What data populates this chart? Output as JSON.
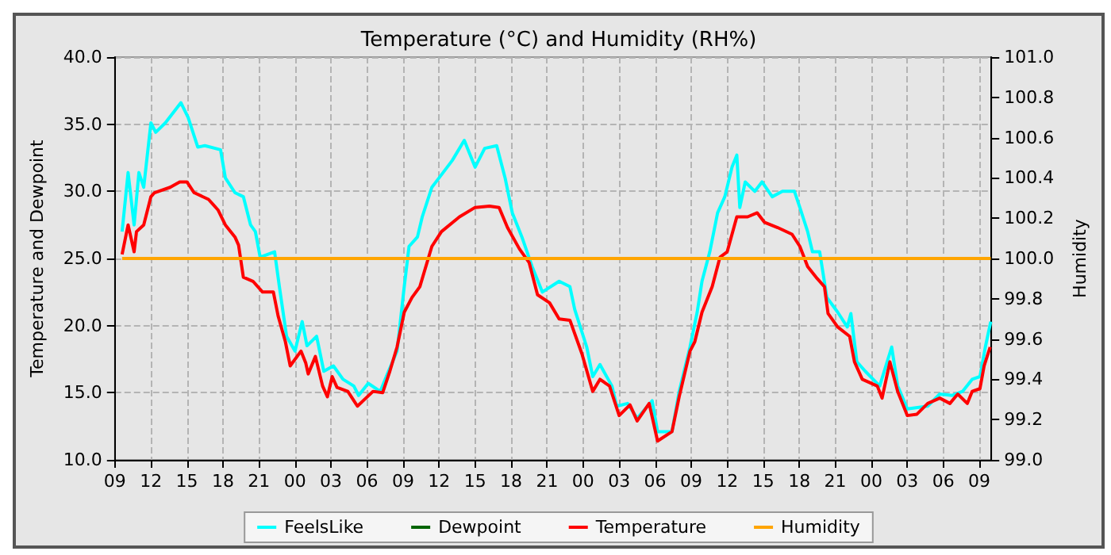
{
  "chart_data": {
    "type": "line",
    "title": "Temperature (°C) and Humidity (RH%)",
    "ylabel": "Temperature and Dewpoint",
    "y2label": "Humidity",
    "xlim": [
      9,
      82
    ],
    "xticks": [
      {
        "value": 9,
        "label": "09"
      },
      {
        "value": 12,
        "label": "12"
      },
      {
        "value": 15,
        "label": "15"
      },
      {
        "value": 18,
        "label": "18"
      },
      {
        "value": 21,
        "label": "21"
      },
      {
        "value": 24,
        "label": "00"
      },
      {
        "value": 27,
        "label": "03"
      },
      {
        "value": 30,
        "label": "06"
      },
      {
        "value": 33,
        "label": "09"
      },
      {
        "value": 36,
        "label": "12"
      },
      {
        "value": 39,
        "label": "15"
      },
      {
        "value": 42,
        "label": "18"
      },
      {
        "value": 45,
        "label": "21"
      },
      {
        "value": 48,
        "label": "00"
      },
      {
        "value": 51,
        "label": "03"
      },
      {
        "value": 54,
        "label": "06"
      },
      {
        "value": 57,
        "label": "09"
      },
      {
        "value": 60,
        "label": "12"
      },
      {
        "value": 63,
        "label": "15"
      },
      {
        "value": 66,
        "label": "18"
      },
      {
        "value": 69,
        "label": "21"
      },
      {
        "value": 72,
        "label": "00"
      },
      {
        "value": 75,
        "label": "03"
      },
      {
        "value": 78,
        "label": "06"
      },
      {
        "value": 81,
        "label": "09"
      }
    ],
    "ylim": [
      10,
      40
    ],
    "yticks": [
      {
        "value": 10,
        "label": "10.0"
      },
      {
        "value": 15,
        "label": "15.0"
      },
      {
        "value": 20,
        "label": "20.0"
      },
      {
        "value": 25,
        "label": "25.0"
      },
      {
        "value": 30,
        "label": "30.0"
      },
      {
        "value": 35,
        "label": "35.0"
      },
      {
        "value": 40,
        "label": "40.0"
      }
    ],
    "y2lim": [
      99,
      101
    ],
    "y2ticks": [
      {
        "value": 99,
        "label": "99.0"
      },
      {
        "value": 99.2,
        "label": "99.2"
      },
      {
        "value": 99.4,
        "label": "99.4"
      },
      {
        "value": 99.6,
        "label": "99.6"
      },
      {
        "value": 99.8,
        "label": "99.8"
      },
      {
        "value": 100,
        "label": "100.0"
      },
      {
        "value": 100.2,
        "label": "100.2"
      },
      {
        "value": 100.4,
        "label": "100.4"
      },
      {
        "value": 100.6,
        "label": "100.6"
      },
      {
        "value": 100.8,
        "label": "100.8"
      },
      {
        "value": 101,
        "label": "101.0"
      }
    ],
    "grid": true,
    "legend": "bottom",
    "marker": "none",
    "line_style": "solid",
    "series": [
      {
        "name": "FeelsLike",
        "color": "#00ffff",
        "x": [
          9.6,
          10.1,
          10.6,
          11.0,
          11.4,
          12.0,
          12.4,
          13.2,
          14.5,
          15.1,
          15.9,
          16.5,
          17.8,
          18.2,
          19.0,
          19.7,
          20.3,
          20.7,
          21.1,
          22.3,
          22.7,
          23.3,
          24.0,
          24.6,
          25.0,
          25.8,
          26.4,
          27.2,
          28.0,
          28.9,
          29.3,
          30.1,
          31.1,
          31.7,
          32.5,
          33.1,
          33.5,
          34.2,
          34.6,
          35.4,
          36.0,
          37.1,
          38.1,
          39.0,
          39.8,
          40.8,
          41.5,
          42.1,
          42.9,
          43.75,
          44.6,
          46.0,
          46.9,
          47.3,
          48.3,
          48.8,
          49.4,
          50.4,
          50.8,
          51.7,
          52.5,
          53.75,
          54.2,
          55.4,
          56.0,
          56.9,
          57.5,
          57.9,
          58.55,
          59.2,
          59.8,
          60.4,
          60.8,
          61.05,
          61.5,
          62.3,
          62.9,
          63.75,
          64.6,
          65.6,
          66.05,
          66.7,
          67.1,
          67.7,
          68.3,
          69.2,
          70.0,
          70.3,
          70.8,
          71.5,
          72.7,
          73.7,
          74.2,
          75.0,
          76.7,
          77.7,
          78.75,
          79.6,
          80.4,
          81.05,
          81.5,
          81.95
        ],
        "values": [
          27.0,
          31.4,
          27.5,
          31.4,
          30.3,
          35.1,
          34.4,
          35.1,
          36.6,
          35.5,
          33.3,
          33.4,
          33.1,
          31.0,
          29.9,
          29.6,
          27.5,
          27.0,
          25.1,
          25.5,
          22.9,
          19.2,
          18.1,
          20.3,
          18.5,
          19.2,
          16.6,
          17.0,
          16.0,
          15.5,
          14.8,
          15.7,
          15.1,
          16.4,
          18.1,
          22.9,
          25.9,
          26.6,
          28.1,
          30.3,
          31.0,
          32.3,
          33.8,
          31.8,
          33.2,
          33.4,
          31.0,
          28.4,
          26.6,
          24.4,
          22.5,
          23.3,
          22.9,
          21.2,
          18.4,
          16.2,
          17.1,
          15.5,
          14.0,
          14.2,
          13.1,
          14.4,
          12.1,
          12.1,
          15.1,
          18.4,
          21.0,
          23.3,
          25.5,
          28.4,
          29.6,
          31.8,
          32.7,
          28.8,
          30.7,
          30.0,
          30.7,
          29.6,
          30.0,
          30.0,
          28.8,
          27.0,
          25.5,
          25.5,
          22.1,
          21.0,
          19.9,
          20.9,
          17.3,
          16.6,
          15.5,
          18.4,
          15.5,
          13.8,
          14.0,
          14.9,
          14.8,
          15.1,
          16.0,
          16.2,
          18.4,
          20.3
        ]
      },
      {
        "name": "Dewpoint",
        "color": "#006400"
      },
      {
        "name": "Temperature",
        "color": "#ff0000",
        "x": [
          9.6,
          10.1,
          10.6,
          10.8,
          11.4,
          12.0,
          12.3,
          13.6,
          14.4,
          15.0,
          15.6,
          16.8,
          17.6,
          18.2,
          19.0,
          19.3,
          19.7,
          20.5,
          21.3,
          22.2,
          22.6,
          23.2,
          23.6,
          24.5,
          24.9,
          25.1,
          25.7,
          26.3,
          26.7,
          27.1,
          27.5,
          28.4,
          29.2,
          30.5,
          31.3,
          31.9,
          32.5,
          33.1,
          33.75,
          34.4,
          35.4,
          36.2,
          37.7,
          39.0,
          40.2,
          41.0,
          41.7,
          42.7,
          43.5,
          44.2,
          45.2,
          46.0,
          46.9,
          47.9,
          48.8,
          49.4,
          50.2,
          51.0,
          51.9,
          52.5,
          53.5,
          54.2,
          55.4,
          56.0,
          56.9,
          57.3,
          57.9,
          58.75,
          59.4,
          60.0,
          60.8,
          61.7,
          62.5,
          63.1,
          64.2,
          65.4,
          66.05,
          66.7,
          67.5,
          68.1,
          68.4,
          69.2,
          70.2,
          70.6,
          71.25,
          72.5,
          72.9,
          73.55,
          74.2,
          75.0,
          75.8,
          76.7,
          77.7,
          78.55,
          79.2,
          80.0,
          80.4,
          81.05,
          81.4,
          81.9
        ],
        "values": [
          25.3,
          27.5,
          25.5,
          27.0,
          27.5,
          29.6,
          29.9,
          30.3,
          30.7,
          30.7,
          29.9,
          29.4,
          28.6,
          27.5,
          26.6,
          26.0,
          23.6,
          23.3,
          22.5,
          22.5,
          20.7,
          18.8,
          17.0,
          18.1,
          17.2,
          16.4,
          17.7,
          15.5,
          14.7,
          16.2,
          15.4,
          15.1,
          14.0,
          15.1,
          15.0,
          16.6,
          18.4,
          21.0,
          22.1,
          22.9,
          25.9,
          27.0,
          28.1,
          28.8,
          28.9,
          28.8,
          27.3,
          25.7,
          24.7,
          22.3,
          21.7,
          20.5,
          20.4,
          17.9,
          15.1,
          16.0,
          15.5,
          13.3,
          14.1,
          12.9,
          14.2,
          11.4,
          12.1,
          14.7,
          18.1,
          18.8,
          21.0,
          22.9,
          25.1,
          25.5,
          28.1,
          28.1,
          28.4,
          27.7,
          27.3,
          26.8,
          25.9,
          24.4,
          23.5,
          22.9,
          20.9,
          19.9,
          19.2,
          17.3,
          16.0,
          15.5,
          14.6,
          17.3,
          15.1,
          13.3,
          13.4,
          14.2,
          14.6,
          14.2,
          14.9,
          14.2,
          15.1,
          15.3,
          17.0,
          18.4
        ]
      },
      {
        "name": "Humidity",
        "color": "#ffa500",
        "axis": "y2",
        "x": [
          9.6,
          81.95
        ],
        "values": [
          100,
          100
        ]
      }
    ]
  }
}
